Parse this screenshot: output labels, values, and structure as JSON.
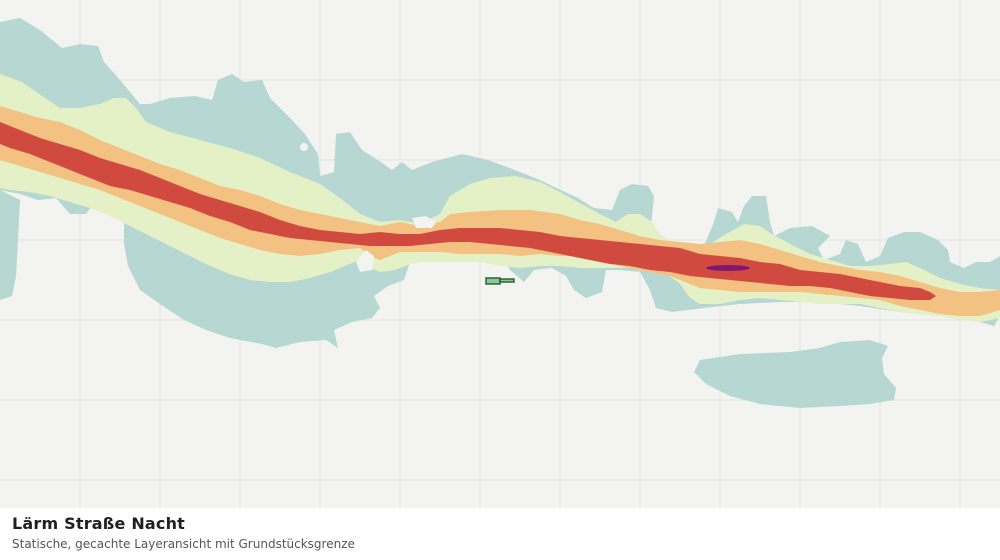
{
  "map": {
    "title": "Lärm Straße Nacht",
    "subtitle": "Statische, gecachte Layeransicht mit Grundstücksgrenze",
    "colors": {
      "background": "#f3f4f1",
      "grid": "#e2e4e0",
      "noise_band_lowest": "#b7d7d3",
      "noise_band_low": "#e4f1c6",
      "noise_band_mid": "#f3c283",
      "noise_band_high": "#d04a40",
      "noise_band_peak": "#7f1770",
      "parcel_fill": "#8fc79c",
      "parcel_outline": "#1f5f2a"
    }
  }
}
